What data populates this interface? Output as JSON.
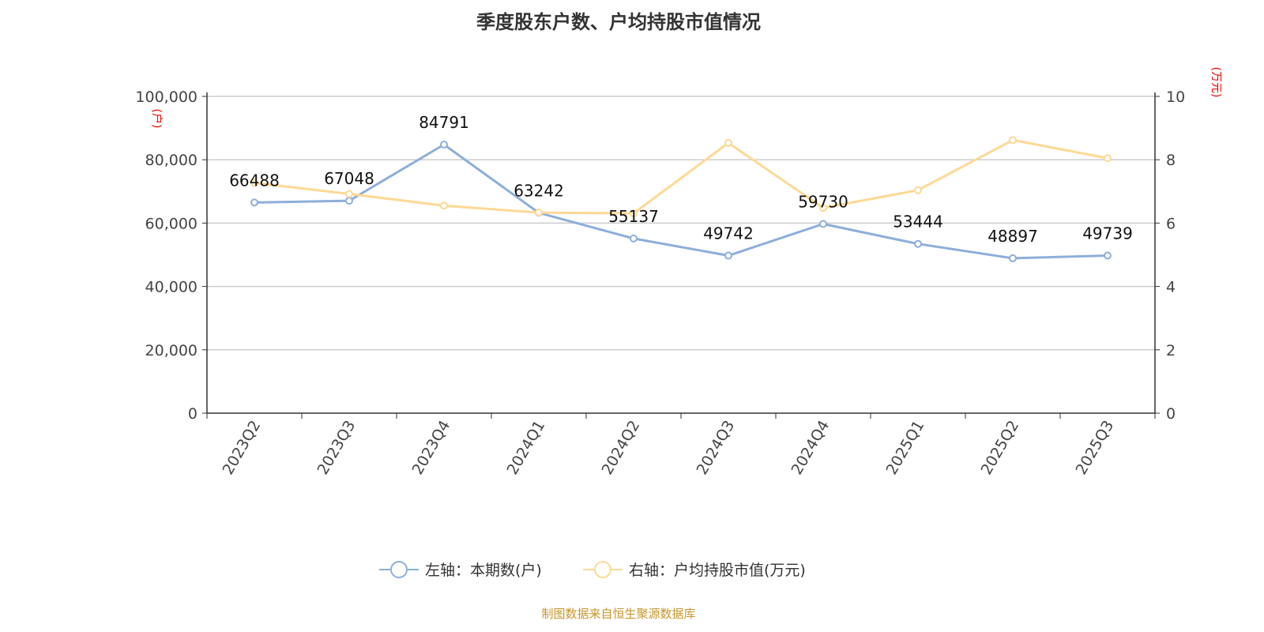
{
  "title": "季度股东户数、户均持股市值情况",
  "footer": "制图数据来自恒生聚源数据库",
  "chart_data": {
    "type": "line",
    "categories": [
      "2023Q2",
      "2023Q3",
      "2023Q4",
      "2024Q1",
      "2024Q2",
      "2024Q3",
      "2024Q4",
      "2025Q1",
      "2025Q2",
      "2025Q3"
    ],
    "left_axis": {
      "unit": "(户)",
      "ylim": [
        0,
        100000
      ],
      "ticks": [
        "0",
        "20,000",
        "40,000",
        "60,000",
        "80,000",
        "100,000"
      ]
    },
    "right_axis": {
      "unit": "(万元)",
      "ylim": [
        0,
        10
      ],
      "ticks": [
        "0",
        "2",
        "4",
        "6",
        "8",
        "10"
      ]
    },
    "grid": true,
    "legend_position": "bottom",
    "series": [
      {
        "name": "左轴：本期数(户)",
        "axis": "left",
        "color": "#8eaedb",
        "values": [
          66488,
          67048,
          84791,
          63242,
          55137,
          49742,
          59730,
          53444,
          48897,
          49739
        ],
        "labels": [
          "66488",
          "67048",
          "84791",
          "63242",
          "55137",
          "49742",
          "59730",
          "53444",
          "48897",
          "49739"
        ]
      },
      {
        "name": "右轴：户均持股市值(万元)",
        "axis": "right",
        "color": "#fdd995",
        "values": [
          7.27,
          6.92,
          6.55,
          6.33,
          6.31,
          8.53,
          6.48,
          7.04,
          8.62,
          8.05
        ]
      }
    ]
  }
}
